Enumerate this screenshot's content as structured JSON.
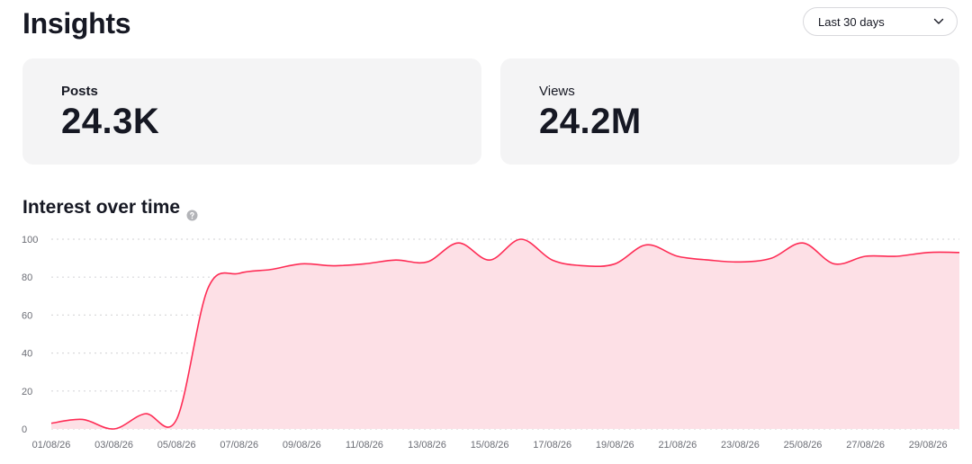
{
  "header": {
    "title": "Insights",
    "range_select": {
      "value": "Last 30 days",
      "icon": "chevron-down-icon"
    }
  },
  "stats": {
    "posts": {
      "label": "Posts",
      "value": "24.3K"
    },
    "views": {
      "label": "Views",
      "value": "24.2M"
    }
  },
  "section": {
    "title": "Interest over time",
    "info_icon": "info-icon"
  },
  "colors": {
    "line": "#fe2c55",
    "area": "#fde0e6",
    "grid": "#d9d9dc",
    "tick": "#6b6d75"
  },
  "chart_data": {
    "type": "area",
    "title": "Interest over time",
    "xlabel": "",
    "ylabel": "",
    "ylim": [
      0,
      100
    ],
    "yticks": [
      0,
      20,
      40,
      60,
      80,
      100
    ],
    "grid": true,
    "x": [
      "01/08/26",
      "02/08/26",
      "03/08/26",
      "04/08/26",
      "05/08/26",
      "06/08/26",
      "07/08/26",
      "08/08/26",
      "09/08/26",
      "10/08/26",
      "11/08/26",
      "12/08/26",
      "13/08/26",
      "14/08/26",
      "15/08/26",
      "16/08/26",
      "17/08/26",
      "18/08/26",
      "19/08/26",
      "20/08/26",
      "21/08/26",
      "22/08/26",
      "23/08/26",
      "24/08/26",
      "25/08/26",
      "26/08/26",
      "27/08/26",
      "28/08/26",
      "29/08/26",
      "30/08/26"
    ],
    "xtick_labels": [
      "01/08/26",
      "03/08/26",
      "05/08/26",
      "07/08/26",
      "09/08/26",
      "11/08/26",
      "13/08/26",
      "15/08/26",
      "17/08/26",
      "19/08/26",
      "21/08/26",
      "23/08/26",
      "25/08/26",
      "27/08/26",
      "29/08/26"
    ],
    "series": [
      {
        "values": [
          3,
          5,
          0,
          8,
          5,
          74,
          82,
          84,
          87,
          86,
          87,
          89,
          88,
          98,
          89,
          100,
          89,
          86,
          87,
          97,
          91,
          89,
          88,
          90,
          98,
          87,
          91,
          91,
          93,
          93
        ]
      }
    ]
  }
}
